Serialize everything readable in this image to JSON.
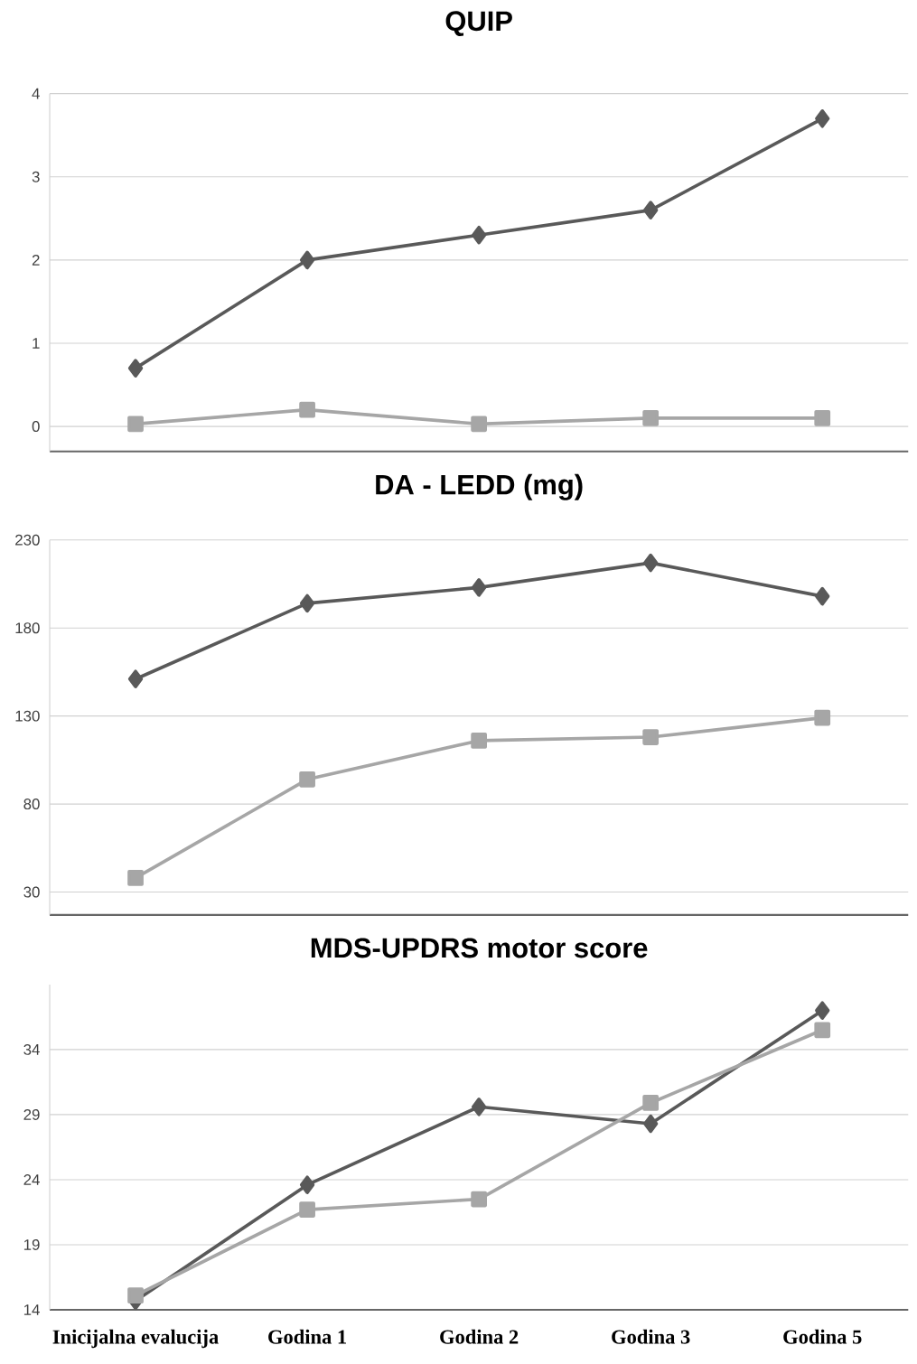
{
  "chart_data": [
    {
      "type": "line",
      "title": "QUIP",
      "ylim": [
        -0.3,
        4
      ],
      "yticks": [
        0,
        1,
        2,
        3,
        4
      ],
      "grid": "y",
      "tick_labels": "y",
      "series": [
        {
          "color": "#595959",
          "marker": "diamond",
          "values": [
            0.7,
            2.0,
            2.3,
            2.6,
            3.7
          ]
        },
        {
          "color": "#a6a6a6",
          "marker": "square",
          "values": [
            0.03,
            0.2,
            0.03,
            0.1,
            0.1
          ]
        }
      ]
    },
    {
      "type": "line",
      "title": "DA - LEDD (mg)",
      "ylim": [
        17,
        230
      ],
      "yticks": [
        30,
        80,
        130,
        180,
        230
      ],
      "grid": "y",
      "tick_labels": "y",
      "series": [
        {
          "color": "#595959",
          "marker": "diamond",
          "values": [
            151,
            194,
            203,
            217,
            198
          ]
        },
        {
          "color": "#a6a6a6",
          "marker": "square",
          "values": [
            38,
            94,
            116,
            118,
            129
          ]
        }
      ]
    },
    {
      "type": "line",
      "title": "MDS-UPDRS motor score",
      "categories": [
        "Inicijalna evalucija",
        "Godina 1",
        "Godina 2",
        "Godina 3",
        "Godina 5"
      ],
      "ylim": [
        14,
        39
      ],
      "yticks": [
        14,
        19,
        24,
        29,
        34
      ],
      "grid": "y",
      "series": [
        {
          "color": "#595959",
          "marker": "diamond",
          "values": [
            14.7,
            23.6,
            29.6,
            28.3,
            37.0
          ]
        },
        {
          "color": "#a6a6a6",
          "marker": "square",
          "values": [
            15.1,
            21.7,
            22.5,
            29.9,
            35.5
          ]
        }
      ]
    }
  ]
}
